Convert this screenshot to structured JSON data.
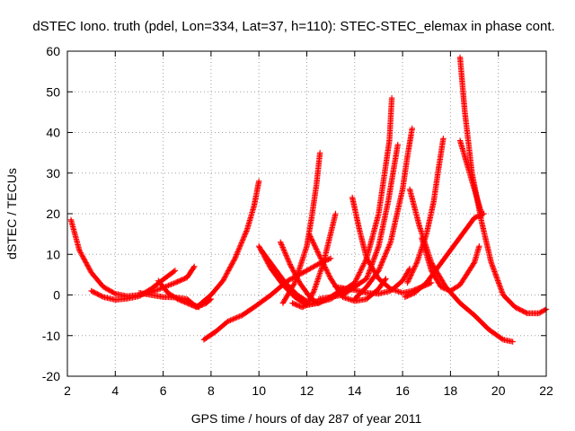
{
  "chart_data": {
    "type": "scatter",
    "title": "dSTEC Iono. truth (pdel, Lon=334, Lat=37, h=110): STEC-STEC_elemax in phase cont.",
    "xlabel": "GPS time / hours of day 287 of year 2011",
    "ylabel": "dSTEC  / TECUs",
    "xlim": [
      2,
      22
    ],
    "ylim": [
      -20,
      60
    ],
    "xticks": [
      2,
      4,
      6,
      8,
      10,
      12,
      14,
      16,
      18,
      20,
      22
    ],
    "yticks": [
      -20,
      -10,
      0,
      10,
      20,
      30,
      40,
      50,
      60
    ],
    "grid": true,
    "marker": "+",
    "color": "#ff0000",
    "series": [
      {
        "x": [
          2.15,
          2.5,
          3.0,
          3.5,
          4.0,
          4.5,
          5.0,
          5.5,
          6.0,
          6.5,
          7.0,
          7.3
        ],
        "y": [
          18.5,
          11,
          5.5,
          2,
          0.3,
          -0.3,
          0,
          0.7,
          1.8,
          3,
          4.3,
          7
        ]
      },
      {
        "x": [
          3.0,
          3.5,
          4.0,
          4.5,
          5.0,
          5.5,
          6.0,
          6.5
        ],
        "y": [
          1,
          -0.5,
          -1.2,
          -0.9,
          -0.3,
          1.5,
          3.8,
          6
        ]
      },
      {
        "x": [
          5.0,
          5.5,
          6.0,
          6.5,
          7.0,
          7.3,
          7.5
        ],
        "y": [
          0.5,
          0,
          -0.5,
          -0.6,
          -1,
          -2.5,
          -3
        ]
      },
      {
        "x": [
          5.8,
          6.2,
          6.6,
          7.0,
          7.4,
          7.8,
          8.0
        ],
        "y": [
          3.5,
          0.5,
          -1,
          -2,
          -3,
          -2,
          -1
        ]
      },
      {
        "x": [
          7.4,
          8.0,
          8.5,
          9.0,
          9.5,
          9.8,
          10.0
        ],
        "y": [
          -3,
          0,
          3.5,
          9,
          16,
          22,
          28
        ]
      },
      {
        "x": [
          7.7,
          8.2,
          8.7,
          9.3,
          9.8,
          10.5,
          11.2,
          12.0,
          12.6,
          13.0
        ],
        "y": [
          -11,
          -9,
          -6.5,
          -5,
          -3,
          0,
          3.5,
          6,
          8,
          9
        ]
      },
      {
        "x": [
          10.0,
          10.5,
          11.0,
          11.5,
          12.0,
          12.5,
          13.0,
          13.5
        ],
        "y": [
          12,
          6.5,
          2.5,
          -0.5,
          -2.5,
          -2,
          -0.5,
          1.5
        ]
      },
      {
        "x": [
          10.1,
          10.6,
          11.1,
          11.6,
          12.0
        ],
        "y": [
          11,
          7,
          3,
          0,
          -1.5
        ]
      },
      {
        "x": [
          10.9,
          11.3,
          11.7,
          12.0,
          12.2,
          12.5
        ],
        "y": [
          13,
          7.5,
          3,
          0.5,
          -1,
          -2
        ]
      },
      {
        "x": [
          11.0,
          11.5,
          12.0,
          12.2,
          12.4,
          12.55
        ],
        "y": [
          -2,
          3,
          12,
          19,
          27,
          35
        ]
      },
      {
        "x": [
          11.4,
          11.8,
          12.0,
          12.3,
          12.7,
          13.2
        ],
        "y": [
          -2,
          -3,
          -2.5,
          1,
          8,
          20
        ]
      },
      {
        "x": [
          12.1,
          12.5,
          13.0,
          13.5,
          14.0,
          14.5,
          15.0,
          15.3
        ],
        "y": [
          15,
          10,
          4,
          -0.5,
          -1.5,
          -1,
          1.5,
          4
        ]
      },
      {
        "x": [
          12.0,
          13.0,
          14.0,
          14.5,
          15.0,
          15.2,
          15.45,
          15.55
        ],
        "y": [
          -2.5,
          -1,
          3,
          9,
          20,
          28,
          38,
          48.5
        ]
      },
      {
        "x": [
          12.5,
          13.5,
          14.5,
          15.0,
          15.4,
          15.8
        ],
        "y": [
          -1,
          0,
          4,
          12,
          23,
          37
        ]
      },
      {
        "x": [
          13.9,
          14.2,
          14.5,
          15.0,
          15.5,
          16.0,
          16.4,
          16.8,
          17.2
        ],
        "y": [
          24,
          16,
          9,
          4,
          1.5,
          0.5,
          1,
          2,
          3
        ]
      },
      {
        "x": [
          13.2,
          14.0,
          14.5,
          15.0,
          15.5,
          16.0,
          16.3
        ],
        "y": [
          2,
          1.2,
          0.5,
          0.3,
          1,
          3.5,
          6.5
        ]
      },
      {
        "x": [
          14.0,
          14.5,
          15.0,
          15.5,
          16.0,
          16.2,
          16.4
        ],
        "y": [
          -1,
          2,
          6,
          13,
          26,
          34,
          41
        ]
      },
      {
        "x": [
          16.3,
          16.7,
          17.2,
          17.8,
          18.4,
          19.0,
          19.6,
          20.2,
          20.6
        ],
        "y": [
          26,
          17,
          8,
          2,
          -2,
          -5,
          -8.5,
          -11,
          -11.5
        ]
      },
      {
        "x": [
          16.1,
          16.5,
          17.0,
          17.5,
          18.0,
          18.5,
          19.0,
          19.4
        ],
        "y": [
          -0.5,
          0.5,
          3,
          7,
          11,
          15,
          19,
          20
        ]
      },
      {
        "x": [
          16.2,
          16.6,
          17.0,
          17.3,
          17.5,
          17.7
        ],
        "y": [
          3,
          8,
          15,
          23,
          31,
          38.5
        ]
      },
      {
        "x": [
          16.8,
          17.2,
          17.6,
          18.0,
          18.4,
          19.0,
          19.2
        ],
        "y": [
          14,
          6,
          2,
          1,
          2.5,
          8,
          12
        ]
      },
      {
        "x": [
          18.4,
          18.6,
          18.9,
          19.3,
          19.7,
          20.2,
          20.7,
          21.2,
          21.7,
          22.0
        ],
        "y": [
          58.5,
          45,
          30,
          18,
          8,
          0,
          -3,
          -4.5,
          -4.5,
          -3.5
        ]
      },
      {
        "x": [
          18.4,
          18.8,
          19.2,
          19.3
        ],
        "y": [
          38,
          30,
          22,
          20
        ]
      }
    ]
  }
}
